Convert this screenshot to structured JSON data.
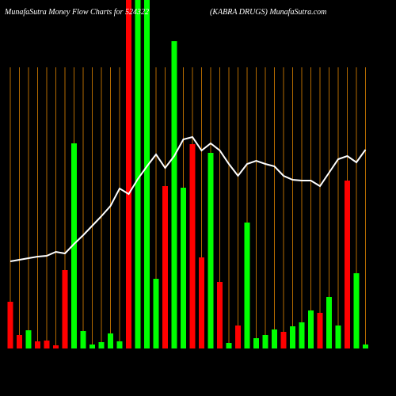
{
  "chart_data": {
    "type": "bar",
    "title": "MunafaSutra  Money Flow  Charts for 524322",
    "subtitle": "(KABRA DRUGS) MunafaSutra.com",
    "values": [
      59,
      17,
      23,
      9,
      10,
      4,
      99,
      259,
      22,
      5,
      8,
      19,
      9,
      450,
      450,
      450,
      88,
      205,
      388,
      203,
      258,
      115,
      247,
      84,
      7,
      29,
      159,
      13,
      17,
      24,
      21,
      28,
      33,
      48,
      45,
      65,
      29,
      212,
      95,
      5
    ],
    "bar_colors": [
      "#ff0000",
      "#ff0000",
      "#00ff00",
      "#ff0000",
      "#ff0000",
      "#ff0000",
      "#ff0000",
      "#00ff00",
      "#00ff00",
      "#00ff00",
      "#00ff00",
      "#00ff00",
      "#00ff00",
      "#ff0000",
      "#00ff00",
      "#00ff00",
      "#00ff00",
      "#ff0000",
      "#00ff00",
      "#00ff00",
      "#ff0000",
      "#ff0000",
      "#00ff00",
      "#ff0000",
      "#00ff00",
      "#ff0000",
      "#00ff00",
      "#00ff00",
      "#00ff00",
      "#00ff00",
      "#ff0000",
      "#00ff00",
      "#00ff00",
      "#00ff00",
      "#ff0000",
      "#00ff00",
      "#00ff00",
      "#ff0000",
      "#00ff00",
      "#00ff00"
    ],
    "line": [
      110,
      112,
      114,
      116,
      117,
      122,
      120,
      132,
      143,
      155,
      167,
      180,
      202,
      195,
      214,
      230,
      245,
      228,
      243,
      264,
      267,
      250,
      259,
      250,
      233,
      218,
      233,
      237,
      233,
      230,
      218,
      213,
      212,
      212,
      205,
      222,
      239,
      243,
      235,
      251
    ],
    "line_color": "#ffffff",
    "grid_color": "#b36a00",
    "ylim": [
      0,
      440
    ]
  }
}
